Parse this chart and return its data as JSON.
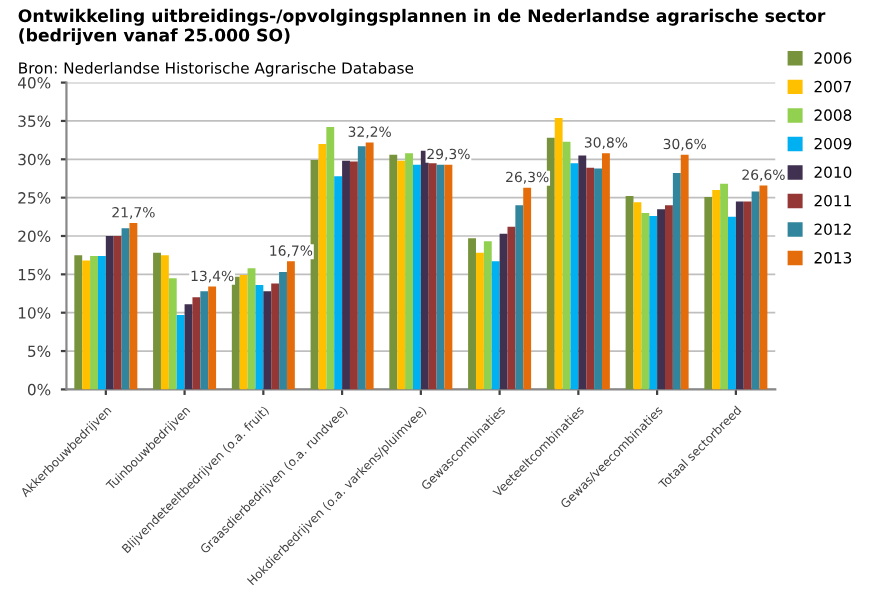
{
  "chart_data": {
    "type": "bar",
    "title": "Ontwikkeling uitbreidings-/opvolgingsplannen in de Nederlandse agrarische sector\n(bedrijven vanaf 25.000 SO)",
    "subtitle": "Bron: Nederlandse Historische Agrarische Database",
    "categories": [
      "Akkerbouwbedrijven",
      "Tuinbouwbedrijven",
      "Blijvendeteeltbedrijven (o.a. fruit)",
      "Graasdierbedrijven (o.a. rundvee)",
      "Hokdierbedrijven (o.a. varkens/pluimvee)",
      "Gewascombinaties",
      "Veeteeltcombinaties",
      "Gewas/veecombinaties",
      "Totaal sectorbreed"
    ],
    "series": [
      {
        "name": "2006",
        "color": "#77933c",
        "values": [
          17.5,
          17.8,
          14.7,
          29.9,
          30.6,
          19.7,
          32.8,
          25.2,
          25.1
        ]
      },
      {
        "name": "2007",
        "color": "#ffc000",
        "values": [
          16.8,
          17.5,
          14.9,
          32.0,
          29.8,
          17.8,
          35.4,
          24.4,
          26.0
        ]
      },
      {
        "name": "2008",
        "color": "#92d050",
        "values": [
          17.4,
          14.5,
          15.8,
          34.2,
          30.8,
          19.3,
          32.3,
          23.0,
          26.8
        ]
      },
      {
        "name": "2009",
        "color": "#00b0f0",
        "values": [
          17.4,
          9.7,
          13.6,
          27.8,
          29.3,
          16.7,
          29.5,
          22.6,
          22.5
        ]
      },
      {
        "name": "2010",
        "color": "#403151",
        "values": [
          20.0,
          11.1,
          12.8,
          29.8,
          31.1,
          20.3,
          30.5,
          23.5,
          24.5
        ]
      },
      {
        "name": "2011",
        "color": "#953735",
        "values": [
          20.0,
          12.0,
          13.8,
          29.7,
          29.5,
          21.2,
          28.9,
          24.0,
          24.5
        ]
      },
      {
        "name": "2012",
        "color": "#31859c",
        "values": [
          21.0,
          12.8,
          15.3,
          31.7,
          29.3,
          24.0,
          28.8,
          28.2,
          25.8
        ]
      },
      {
        "name": "2013",
        "color": "#e46c0a",
        "values": [
          21.7,
          13.4,
          16.7,
          32.2,
          29.3,
          26.3,
          30.8,
          30.6,
          26.6
        ],
        "value_labels": [
          "21,7%",
          "13,4%",
          "16,7%",
          "32,2%",
          "29,3%",
          "26,3%",
          "30,8%",
          "30,6%",
          "26,6%"
        ]
      }
    ],
    "ylim": [
      0,
      40
    ],
    "yticks": [
      {
        "value": 0,
        "label": "0%"
      },
      {
        "value": 5,
        "label": "5%"
      },
      {
        "value": 10,
        "label": "10%"
      },
      {
        "value": 15,
        "label": "15%"
      },
      {
        "value": 20,
        "label": "20%"
      },
      {
        "value": 25,
        "label": "25%"
      },
      {
        "value": 30,
        "label": "30%"
      },
      {
        "value": 35,
        "label": "35%"
      },
      {
        "value": 40,
        "label": "40%"
      }
    ],
    "grid": "y",
    "legend": "right"
  }
}
